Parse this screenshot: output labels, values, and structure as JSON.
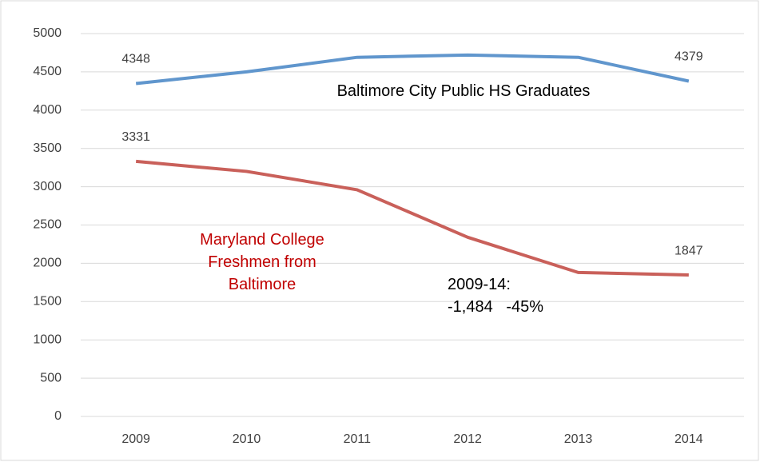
{
  "chart_data": {
    "type": "line",
    "categories": [
      "2009",
      "2010",
      "2011",
      "2012",
      "2013",
      "2014"
    ],
    "series": [
      {
        "name": "Baltimore City Public HS Graduates",
        "color": "#6096cd",
        "values": [
          4348,
          4500,
          4690,
          4720,
          4690,
          4379
        ],
        "value_labels": [
          "4348",
          null,
          null,
          null,
          null,
          "4379"
        ]
      },
      {
        "name": "Maryland College Freshmen from Baltimore",
        "color": "#c9605a",
        "values": [
          3331,
          3200,
          2960,
          2340,
          1880,
          1847
        ],
        "value_labels": [
          "3331",
          null,
          null,
          null,
          null,
          "1847"
        ]
      }
    ],
    "annotations": [
      "2009-14:\n-1,484   -45%"
    ],
    "ylim": [
      0,
      5000
    ],
    "yticks": [
      0,
      500,
      1000,
      1500,
      2000,
      2500,
      3000,
      3500,
      4000,
      4500,
      5000
    ],
    "grid": true
  }
}
